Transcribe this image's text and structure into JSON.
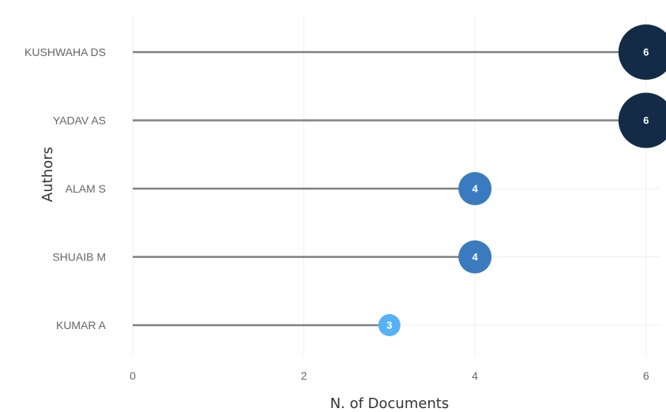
{
  "chart_data": {
    "type": "lollipop",
    "xlabel": "N. of Documents",
    "ylabel": "Authors",
    "xlim": [
      0,
      6.15
    ],
    "xticks": [
      0,
      2,
      4,
      6
    ],
    "grid": true,
    "categories": [
      "KUSHWAHA DS",
      "YADAV AS",
      "ALAM S",
      "SHUAIB M",
      "KUMAR A"
    ],
    "values": [
      6,
      6,
      4,
      4,
      3
    ],
    "data_labels": [
      "6",
      "6",
      "4",
      "4",
      "3"
    ],
    "colors": {
      "high": "#132b47",
      "mid": "#3a7bbf",
      "low": "#56b1f7",
      "stem": "#808080",
      "grid": "#efefef"
    }
  }
}
